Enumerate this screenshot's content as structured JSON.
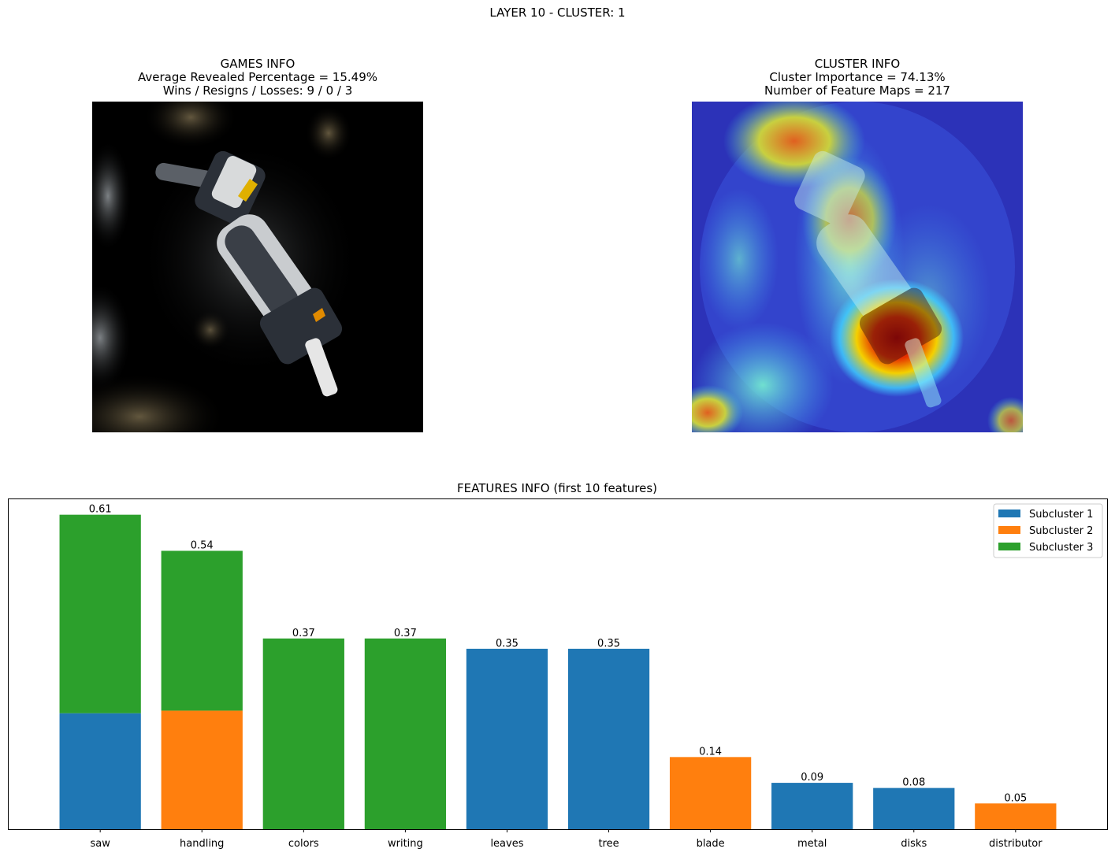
{
  "suptitle": "LAYER 10 - CLUSTER: 1",
  "games_info": {
    "title": "GAMES INFO",
    "line1": "Average Revealed Percentage = 15.49%",
    "line2": "Wins / Resigns / Losses: 9 / 0 / 3"
  },
  "cluster_info": {
    "title": "CLUSTER INFO",
    "line1": "Cluster Importance = 74.13%",
    "line2": "Number of Feature Maps = 217"
  },
  "colors": {
    "subcluster_1": "#1f77b4",
    "subcluster_2": "#ff7f0e",
    "subcluster_3": "#2ca02c"
  },
  "chart_data": {
    "type": "bar",
    "stacked": true,
    "title": "FEATURES INFO (first 10 features)",
    "categories": [
      "saw",
      "handling",
      "colors",
      "writing",
      "leaves",
      "tree",
      "blade",
      "metal",
      "disks",
      "distributor"
    ],
    "totals": [
      0.61,
      0.54,
      0.37,
      0.37,
      0.35,
      0.35,
      0.14,
      0.09,
      0.08,
      0.05
    ],
    "total_labels": [
      "0.61",
      "0.54",
      "0.37",
      "0.37",
      "0.35",
      "0.35",
      "0.14",
      "0.09",
      "0.08",
      "0.05"
    ],
    "series": [
      {
        "name": "Subcluster 1",
        "values": [
          0.225,
          0,
          0,
          0,
          0.35,
          0.35,
          0,
          0.09,
          0.08,
          0
        ]
      },
      {
        "name": "Subcluster 2",
        "values": [
          0,
          0.23,
          0,
          0,
          0,
          0,
          0.14,
          0,
          0,
          0.05
        ]
      },
      {
        "name": "Subcluster 3",
        "values": [
          0.385,
          0.31,
          0.37,
          0.37,
          0,
          0,
          0,
          0,
          0,
          0
        ]
      }
    ],
    "ylim": [
      0,
      0.64
    ],
    "y_ticks_visible": false,
    "grid": false,
    "legend_position": "top-right"
  }
}
